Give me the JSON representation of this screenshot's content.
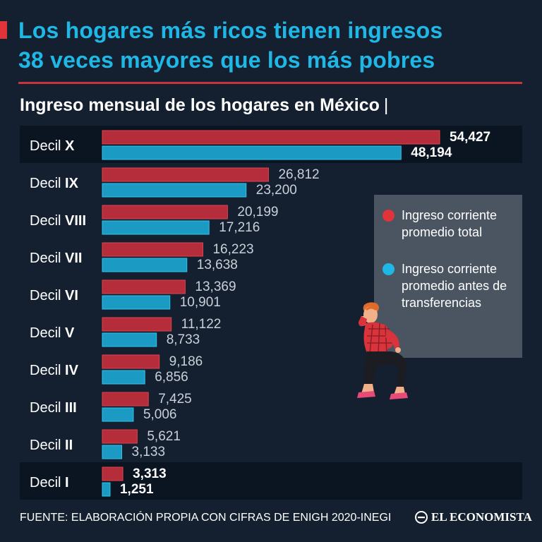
{
  "header": {
    "headline_line1": "Los hogares más ricos tienen ingresos",
    "headline_line2": "38 veces mayores que los más pobres",
    "subtitle": "Ingreso mensual de los hogares en México",
    "subtitle_cursor": "|"
  },
  "legend": {
    "total": "Ingreso corriente promedio total",
    "before_transfers": "Ingreso corriente promedio antes de transferencias"
  },
  "footer": {
    "source": "FUENTE: ELABORACIÓN PROPIA CON CIFRAS DE ENIGH 2020-INEGI",
    "brand": "EL ECONOMISTA"
  },
  "colors": {
    "background": "#14202f",
    "headline": "#1fb8e6",
    "total_bar": "#b52d3a",
    "total_bar_border": "#e0424c",
    "transfer_bar": "#1b9bc4",
    "transfer_bar_border": "#2fc3ef",
    "highlight_row": "#0b1521",
    "legend_bg": "#4a5561"
  },
  "chart_data": {
    "type": "bar",
    "orientation": "horizontal",
    "title": "Ingreso mensual de los hogares en México",
    "categories_prefix": "Decil",
    "categories": [
      "X",
      "IX",
      "VIII",
      "VII",
      "VI",
      "V",
      "IV",
      "III",
      "II",
      "I"
    ],
    "series": [
      {
        "name": "Ingreso corriente promedio total",
        "values": [
          54427,
          26812,
          20199,
          16223,
          13369,
          11122,
          9186,
          7425,
          5621,
          3313
        ],
        "labels": [
          "54,427",
          "26,812",
          "20,199",
          "16,223",
          "13,369",
          "11,122",
          "9,186",
          "7,425",
          "5,621",
          "3,313"
        ]
      },
      {
        "name": "Ingreso corriente promedio antes de transferencias",
        "values": [
          48194,
          23200,
          17216,
          13638,
          10901,
          8733,
          6856,
          5006,
          3133,
          1251
        ],
        "labels": [
          "48,194",
          "23,200",
          "17,216",
          "13,638",
          "10,901",
          "8,733",
          "6,856",
          "5,006",
          "3,133",
          "1,251"
        ]
      }
    ],
    "highlighted_categories": [
      "X",
      "I"
    ],
    "xlim": [
      0,
      54427
    ],
    "grid": false,
    "legend_position": "right"
  }
}
